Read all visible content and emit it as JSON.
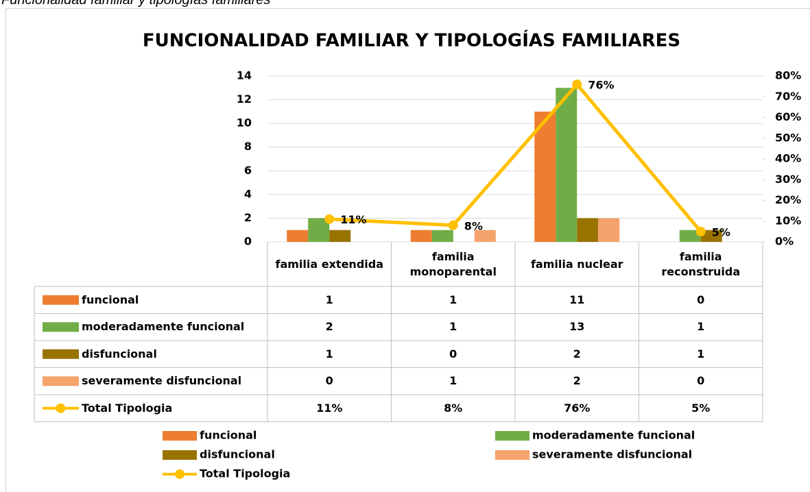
{
  "caption": "Funcionalidad familiar y tipologías familiares",
  "chart_data": {
    "type": "bar",
    "title": "FUNCIONALIDAD FAMILIAR Y TIPOLOGÍAS FAMILIARES",
    "categories": [
      "familia extendida",
      "familia monoparental",
      "familia nuclear",
      "familia reconstruida"
    ],
    "series": [
      {
        "name": "funcional",
        "color": "#ed7d31",
        "values": [
          1,
          1,
          11,
          0
        ]
      },
      {
        "name": "moderadamente funcional",
        "color": "#70ad47",
        "values": [
          2,
          1,
          13,
          1
        ]
      },
      {
        "name": "disfuncional",
        "color": "#997300",
        "values": [
          1,
          0,
          2,
          1
        ]
      },
      {
        "name": "severamente disfuncional",
        "color": "#f4a36c",
        "values": [
          0,
          1,
          2,
          0
        ]
      },
      {
        "name": "Total Tipologia",
        "color": "#ffc000",
        "type": "line",
        "axis": "y2",
        "values": [
          11,
          8,
          76,
          5
        ],
        "value_labels": [
          "11%",
          "8%",
          "76%",
          "5%"
        ]
      }
    ],
    "ylim": [
      0,
      14
    ],
    "yticks": [
      0,
      2,
      4,
      6,
      8,
      10,
      12,
      14
    ],
    "y2lim": [
      0,
      80
    ],
    "y2ticks": [
      {
        "value": 0,
        "label": "0%"
      },
      {
        "value": 10,
        "label": "10%"
      },
      {
        "value": 20,
        "label": "20%"
      },
      {
        "value": 30,
        "label": "30%"
      },
      {
        "value": 40,
        "label": "40%"
      },
      {
        "value": 50,
        "label": "50%"
      },
      {
        "value": 60,
        "label": "60%"
      },
      {
        "value": 70,
        "label": "70%"
      },
      {
        "value": 80,
        "label": "80%"
      }
    ],
    "grid": true,
    "data_table": true,
    "legend": "bottom"
  }
}
